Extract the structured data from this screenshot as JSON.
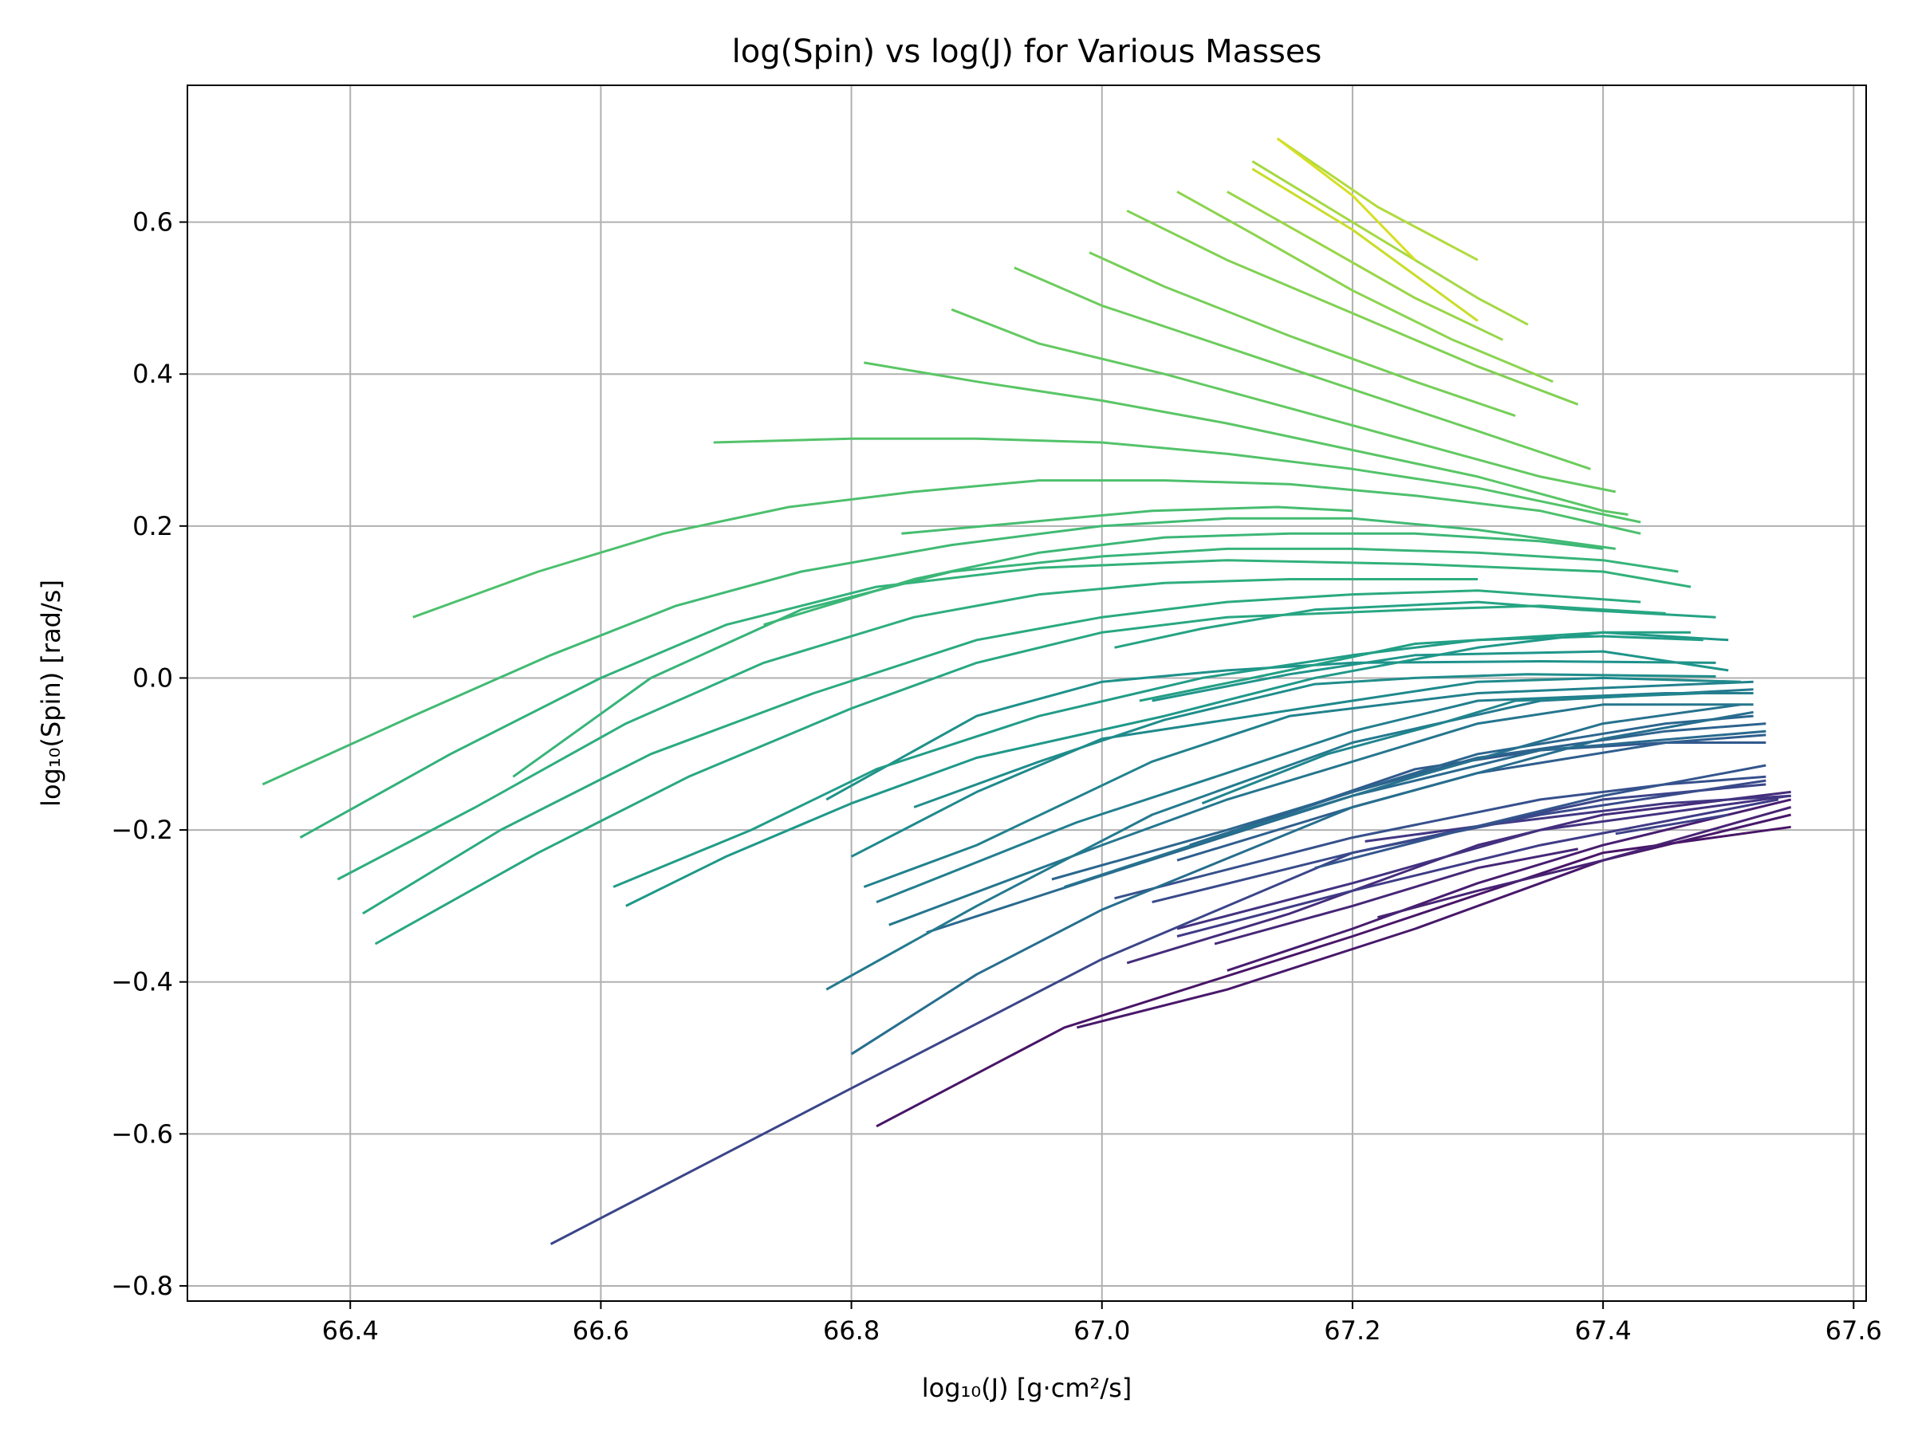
{
  "chart_data": {
    "type": "line",
    "title": "log(Spin) vs log(J) for Various Masses",
    "xlabel": "log₁₀(J) [g·cm²/s]",
    "ylabel": "log₁₀(Spin) [rad/s]",
    "xlim": [
      66.27,
      67.61
    ],
    "ylim": [
      -0.82,
      0.78
    ],
    "xticks": [
      66.4,
      66.6,
      66.8,
      67.0,
      67.2,
      67.4,
      67.6
    ],
    "xtick_labels": [
      "66.4",
      "66.6",
      "66.8",
      "67.0",
      "67.2",
      "67.4",
      "67.6"
    ],
    "yticks": [
      -0.8,
      -0.6,
      -0.4,
      -0.2,
      0.0,
      0.2,
      0.4,
      0.6
    ],
    "ytick_labels": [
      "−0.8",
      "−0.6",
      "−0.4",
      "−0.2",
      "0.0",
      "0.2",
      "0.4",
      "0.6"
    ],
    "grid": true,
    "legend": "none",
    "series": [
      {
        "color": "#481567",
        "x": [
          66.82,
          66.97,
          67.2,
          67.4,
          67.55
        ],
        "y": [
          -0.59,
          -0.46,
          -0.34,
          -0.23,
          -0.196
        ]
      },
      {
        "color": "#48186a",
        "x": [
          66.98,
          67.1,
          67.25,
          67.4,
          67.55
        ],
        "y": [
          -0.46,
          -0.41,
          -0.33,
          -0.24,
          -0.18
        ]
      },
      {
        "color": "#471d6f",
        "x": [
          67.1,
          67.2,
          67.3,
          67.4,
          67.55
        ],
        "y": [
          -0.385,
          -0.33,
          -0.27,
          -0.22,
          -0.16
        ]
      },
      {
        "color": "#472374",
        "x": [
          67.22,
          67.3,
          67.4,
          67.55
        ],
        "y": [
          -0.315,
          -0.28,
          -0.24,
          -0.17
        ]
      },
      {
        "color": "#462777",
        "x": [
          67.09,
          67.2,
          67.3,
          67.38
        ],
        "y": [
          -0.35,
          -0.3,
          -0.25,
          -0.225
        ]
      },
      {
        "color": "#452c7b",
        "x": [
          67.02,
          67.15,
          67.3,
          67.4,
          67.55
        ],
        "y": [
          -0.375,
          -0.31,
          -0.22,
          -0.18,
          -0.15
        ]
      },
      {
        "color": "#433180",
        "x": [
          67.06,
          67.2,
          67.35,
          67.55
        ],
        "y": [
          -0.33,
          -0.27,
          -0.2,
          -0.155
        ]
      },
      {
        "color": "#423683",
        "x": [
          67.21,
          67.3,
          67.45,
          67.55
        ],
        "y": [
          -0.215,
          -0.195,
          -0.165,
          -0.155
        ]
      },
      {
        "color": "#3f3b86",
        "x": [
          67.06,
          67.2,
          67.35,
          67.54
        ],
        "y": [
          -0.34,
          -0.28,
          -0.22,
          -0.16
        ]
      },
      {
        "color": "#3d4088",
        "x": [
          67.41,
          67.5
        ],
        "y": [
          -0.205,
          -0.18
        ]
      },
      {
        "color": "#3b4589",
        "x": [
          66.56,
          66.8,
          67.0,
          67.2,
          67.4,
          67.53
        ],
        "y": [
          -0.745,
          -0.54,
          -0.37,
          -0.23,
          -0.16,
          -0.14
        ]
      },
      {
        "color": "#394a8b",
        "x": [
          67.04,
          67.2,
          67.35,
          67.53
        ],
        "y": [
          -0.295,
          -0.23,
          -0.18,
          -0.135
        ]
      },
      {
        "color": "#36508c",
        "x": [
          67.01,
          67.2,
          67.35,
          67.45,
          67.53
        ],
        "y": [
          -0.29,
          -0.21,
          -0.16,
          -0.14,
          -0.13
        ]
      },
      {
        "color": "#33558d",
        "x": [
          67.17,
          67.3,
          67.4,
          67.53
        ],
        "y": [
          -0.25,
          -0.195,
          -0.155,
          -0.115
        ]
      },
      {
        "color": "#31598d",
        "x": [
          67.17,
          67.25,
          67.35,
          67.45,
          67.53
        ],
        "y": [
          -0.165,
          -0.12,
          -0.095,
          -0.085,
          -0.085
        ]
      },
      {
        "color": "#2f5e8e",
        "x": [
          67.06,
          67.2,
          67.3,
          67.45,
          67.53
        ],
        "y": [
          -0.24,
          -0.17,
          -0.125,
          -0.085,
          -0.075
        ]
      },
      {
        "color": "#2d628e",
        "x": [
          67.07,
          67.2,
          67.3,
          67.45,
          67.53
        ],
        "y": [
          -0.22,
          -0.15,
          -0.105,
          -0.07,
          -0.06
        ]
      },
      {
        "color": "#2b668e",
        "x": [
          66.96,
          67.1,
          67.24,
          67.3,
          67.45,
          67.52
        ],
        "y": [
          -0.265,
          -0.2,
          -0.13,
          -0.1,
          -0.06,
          -0.05
        ]
      },
      {
        "color": "#296a8e",
        "x": [
          66.86,
          67.0,
          67.2,
          67.35,
          67.53
        ],
        "y": [
          -0.335,
          -0.26,
          -0.155,
          -0.095,
          -0.07
        ]
      },
      {
        "color": "#276e8e",
        "x": [
          66.8,
          66.9,
          67.0,
          67.2,
          67.4,
          67.52
        ],
        "y": [
          -0.495,
          -0.39,
          -0.305,
          -0.17,
          -0.08,
          -0.045
        ]
      },
      {
        "color": "#26728e",
        "x": [
          66.97,
          67.1,
          67.25,
          67.4,
          67.51
        ],
        "y": [
          -0.275,
          -0.205,
          -0.13,
          -0.06,
          -0.035
        ]
      },
      {
        "color": "#25768e",
        "x": [
          66.83,
          67.0,
          67.1,
          67.2,
          67.3,
          67.4,
          67.52
        ],
        "y": [
          -0.325,
          -0.22,
          -0.16,
          -0.11,
          -0.06,
          -0.035,
          -0.035
        ]
      },
      {
        "color": "#247a8e",
        "x": [
          66.78,
          66.9,
          67.04,
          67.2,
          67.35,
          67.52
        ],
        "y": [
          -0.41,
          -0.3,
          -0.18,
          -0.085,
          -0.03,
          -0.015
        ]
      },
      {
        "color": "#227e8e",
        "x": [
          66.82,
          66.98,
          67.1,
          67.2,
          67.3,
          67.45,
          67.52
        ],
        "y": [
          -0.295,
          -0.19,
          -0.125,
          -0.07,
          -0.03,
          -0.02,
          -0.02
        ]
      },
      {
        "color": "#21818d",
        "x": [
          66.81,
          66.9,
          67.04,
          67.15,
          67.3,
          67.52
        ],
        "y": [
          -0.275,
          -0.22,
          -0.11,
          -0.05,
          -0.02,
          -0.005
        ]
      },
      {
        "color": "#20858d",
        "x": [
          67.08,
          67.18,
          67.27,
          67.33,
          67.48
        ],
        "y": [
          -0.165,
          -0.1,
          -0.06,
          -0.03,
          -0.02
        ]
      },
      {
        "color": "#1f898c",
        "x": [
          66.8,
          66.9,
          67.0,
          67.2,
          67.3,
          67.4,
          67.51
        ],
        "y": [
          -0.235,
          -0.15,
          -0.08,
          -0.03,
          -0.005,
          0.0,
          -0.005
        ]
      },
      {
        "color": "#1f8d8b",
        "x": [
          66.85,
          66.95,
          67.05,
          67.17,
          67.25,
          67.34,
          67.49
        ],
        "y": [
          -0.17,
          -0.11,
          -0.055,
          -0.008,
          0.0,
          0.005,
          0.002
        ]
      },
      {
        "color": "#1e918a",
        "x": [
          66.78,
          66.9,
          67.0,
          67.1,
          67.2,
          67.35,
          67.49
        ],
        "y": [
          -0.16,
          -0.05,
          -0.005,
          0.01,
          0.02,
          0.022,
          0.02
        ]
      },
      {
        "color": "#1f958a",
        "x": [
          67.04,
          67.15,
          67.25,
          67.4,
          67.5
        ],
        "y": [
          -0.03,
          0.005,
          0.03,
          0.035,
          0.01
        ]
      },
      {
        "color": "#1f9889",
        "x": [
          66.62,
          66.7,
          66.8,
          66.9,
          67.05,
          67.17,
          67.3,
          67.4,
          67.5
        ],
        "y": [
          -0.3,
          -0.235,
          -0.165,
          -0.105,
          -0.05,
          0.0,
          0.04,
          0.06,
          0.05
        ]
      },
      {
        "color": "#219c87",
        "x": [
          66.61,
          66.72,
          66.82,
          66.95,
          67.08,
          67.2,
          67.3,
          67.4,
          67.48
        ],
        "y": [
          -0.275,
          -0.2,
          -0.12,
          -0.05,
          0.0,
          0.03,
          0.05,
          0.055,
          0.05
        ]
      },
      {
        "color": "#22a085",
        "x": [
          67.03,
          67.12,
          67.25,
          67.4,
          67.47
        ],
        "y": [
          -0.03,
          0.0,
          0.045,
          0.06,
          0.06
        ]
      },
      {
        "color": "#25a384",
        "x": [
          67.01,
          67.08,
          67.17,
          67.3,
          67.38,
          67.49
        ],
        "y": [
          0.04,
          0.065,
          0.09,
          0.1,
          0.09,
          0.08
        ]
      },
      {
        "color": "#28a782",
        "x": [
          66.42,
          66.55,
          66.67,
          66.8,
          66.9,
          67.0,
          67.1,
          67.25,
          67.35,
          67.45
        ],
        "y": [
          -0.35,
          -0.23,
          -0.13,
          -0.04,
          0.02,
          0.06,
          0.08,
          0.09,
          0.095,
          0.085
        ]
      },
      {
        "color": "#2aaa80",
        "x": [
          66.41,
          66.52,
          66.64,
          66.77,
          66.9,
          67.0,
          67.1,
          67.2,
          67.3,
          67.43
        ],
        "y": [
          -0.31,
          -0.2,
          -0.1,
          -0.02,
          0.05,
          0.08,
          0.1,
          0.11,
          0.115,
          0.1
        ]
      },
      {
        "color": "#2eae7e",
        "x": [
          66.39,
          66.5,
          66.62,
          66.73,
          66.85,
          66.95,
          67.05,
          67.15,
          67.3
        ],
        "y": [
          -0.265,
          -0.17,
          -0.06,
          0.02,
          0.08,
          0.11,
          0.125,
          0.13,
          0.13
        ]
      },
      {
        "color": "#32b17b",
        "x": [
          66.36,
          66.48,
          66.6,
          66.7,
          66.82,
          66.95,
          67.1,
          67.25,
          67.4,
          67.47
        ],
        "y": [
          -0.21,
          -0.1,
          0.0,
          0.07,
          0.12,
          0.145,
          0.155,
          0.15,
          0.14,
          0.12
        ]
      },
      {
        "color": "#37b479",
        "x": [
          66.53,
          66.64,
          66.76,
          66.88,
          67.0,
          67.1,
          67.2,
          67.3,
          67.4,
          67.46
        ],
        "y": [
          -0.13,
          0.0,
          0.09,
          0.14,
          0.16,
          0.17,
          0.17,
          0.165,
          0.155,
          0.14
        ]
      },
      {
        "color": "#3cb776",
        "x": [
          66.73,
          66.85,
          66.95,
          67.05,
          67.15,
          67.25,
          67.35,
          67.4
        ],
        "y": [
          0.07,
          0.13,
          0.165,
          0.185,
          0.19,
          0.19,
          0.18,
          0.17
        ]
      },
      {
        "color": "#41ba73",
        "x": [
          66.33,
          66.45,
          66.56,
          66.66,
          66.76,
          66.88,
          67.0,
          67.1,
          67.2,
          67.3,
          67.41
        ],
        "y": [
          -0.14,
          -0.05,
          0.03,
          0.095,
          0.14,
          0.175,
          0.2,
          0.21,
          0.21,
          0.195,
          0.17
        ]
      },
      {
        "color": "#47bd70",
        "x": [
          66.84,
          66.94,
          67.04,
          67.14,
          67.2
        ],
        "y": [
          0.19,
          0.205,
          0.22,
          0.225,
          0.22
        ]
      },
      {
        "color": "#4dc06d",
        "x": [
          66.45,
          66.55,
          66.65,
          66.75,
          66.85,
          66.95,
          67.05,
          67.15,
          67.25,
          67.35,
          67.43
        ],
        "y": [
          0.08,
          0.14,
          0.19,
          0.225,
          0.245,
          0.26,
          0.26,
          0.255,
          0.24,
          0.22,
          0.19
        ]
      },
      {
        "color": "#53c36a",
        "x": [
          66.69,
          66.8,
          66.9,
          67.0,
          67.1,
          67.2,
          67.3,
          67.43
        ],
        "y": [
          0.31,
          0.315,
          0.315,
          0.31,
          0.295,
          0.275,
          0.25,
          0.205
        ]
      },
      {
        "color": "#5ac666",
        "x": [
          66.81,
          66.9,
          67.0,
          67.1,
          67.2,
          67.3,
          67.4,
          67.42
        ],
        "y": [
          0.415,
          0.39,
          0.365,
          0.335,
          0.3,
          0.265,
          0.22,
          0.215
        ]
      },
      {
        "color": "#63c962",
        "x": [
          66.88,
          66.95,
          67.05,
          67.15,
          67.25,
          67.35,
          67.41
        ],
        "y": [
          0.485,
          0.44,
          0.4,
          0.355,
          0.31,
          0.265,
          0.245
        ]
      },
      {
        "color": "#6ccc5d",
        "x": [
          66.93,
          67.0,
          67.1,
          67.2,
          67.3,
          67.39
        ],
        "y": [
          0.54,
          0.49,
          0.435,
          0.38,
          0.325,
          0.275
        ]
      },
      {
        "color": "#76cf58",
        "x": [
          66.99,
          67.05,
          67.15,
          67.25,
          67.33
        ],
        "y": [
          0.56,
          0.515,
          0.45,
          0.39,
          0.345
        ]
      },
      {
        "color": "#81d153",
        "x": [
          67.02,
          67.1,
          67.2,
          67.3,
          67.38
        ],
        "y": [
          0.615,
          0.55,
          0.48,
          0.41,
          0.36
        ]
      },
      {
        "color": "#8cd44e",
        "x": [
          67.06,
          67.12,
          67.2,
          67.28,
          67.36
        ],
        "y": [
          0.64,
          0.585,
          0.51,
          0.445,
          0.39
        ]
      },
      {
        "color": "#98d648",
        "x": [
          67.1,
          67.17,
          67.25,
          67.32
        ],
        "y": [
          0.64,
          0.575,
          0.5,
          0.445
        ]
      },
      {
        "color": "#a4d943",
        "x": [
          67.12,
          67.2,
          67.3,
          67.34
        ],
        "y": [
          0.68,
          0.6,
          0.5,
          0.465
        ]
      },
      {
        "color": "#b1db3e",
        "x": [
          67.14,
          67.22,
          67.3
        ],
        "y": [
          0.71,
          0.62,
          0.55
        ]
      },
      {
        "color": "#c9dd2a",
        "x": [
          67.12,
          67.2,
          67.3
        ],
        "y": [
          0.67,
          0.59,
          0.47
        ]
      },
      {
        "color": "#d6df24",
        "x": [
          67.14,
          67.2,
          67.25
        ],
        "y": [
          0.71,
          0.635,
          0.55
        ]
      }
    ]
  }
}
